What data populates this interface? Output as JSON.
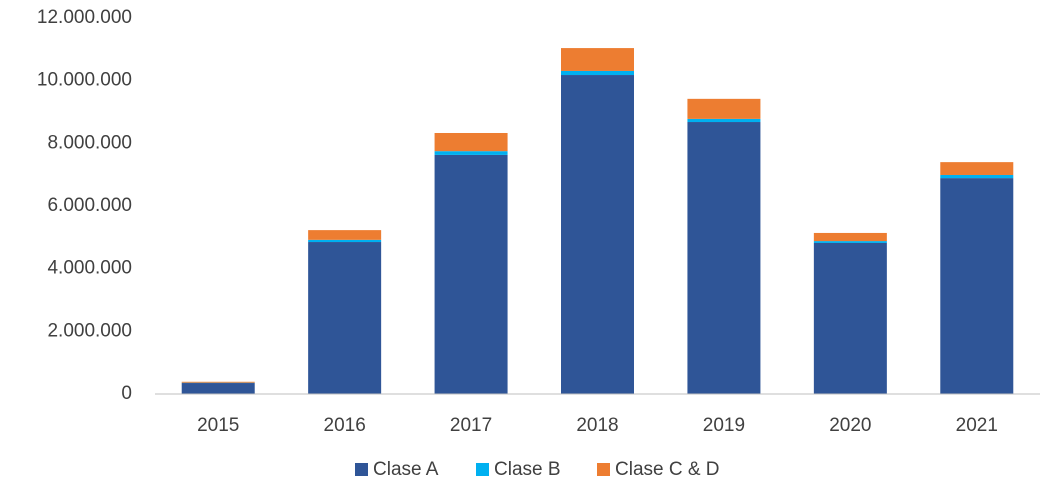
{
  "chart_data": {
    "type": "stacked_bar",
    "categories": [
      "2015",
      "2016",
      "2017",
      "2018",
      "2019",
      "2020",
      "2021"
    ],
    "series": [
      {
        "name": "Clase A",
        "color": "#2f5597",
        "values": [
          350000,
          4850000,
          7630000,
          10180000,
          8680000,
          4820000,
          6890000
        ]
      },
      {
        "name": "Clase B",
        "color": "#00b0f0",
        "values": [
          10000,
          70000,
          120000,
          130000,
          100000,
          60000,
          100000
        ]
      },
      {
        "name": "Clase C & D",
        "color": "#ed7d31",
        "values": [
          30000,
          310000,
          580000,
          730000,
          640000,
          260000,
          410000
        ]
      }
    ],
    "ylim": [
      0,
      12000000
    ],
    "yticks": [
      0,
      {
        "value": 2000000,
        "label": "2.000.000"
      },
      {
        "value": 4000000,
        "label": "4.000.000"
      },
      {
        "value": 6000000,
        "label": "6.000.000"
      },
      {
        "value": 8000000,
        "label": "8.000.000"
      },
      {
        "value": 10000000,
        "label": "10.000.000"
      },
      {
        "value": 12000000,
        "label": "12.000.000"
      }
    ],
    "grid": false,
    "legend": "bottom"
  }
}
